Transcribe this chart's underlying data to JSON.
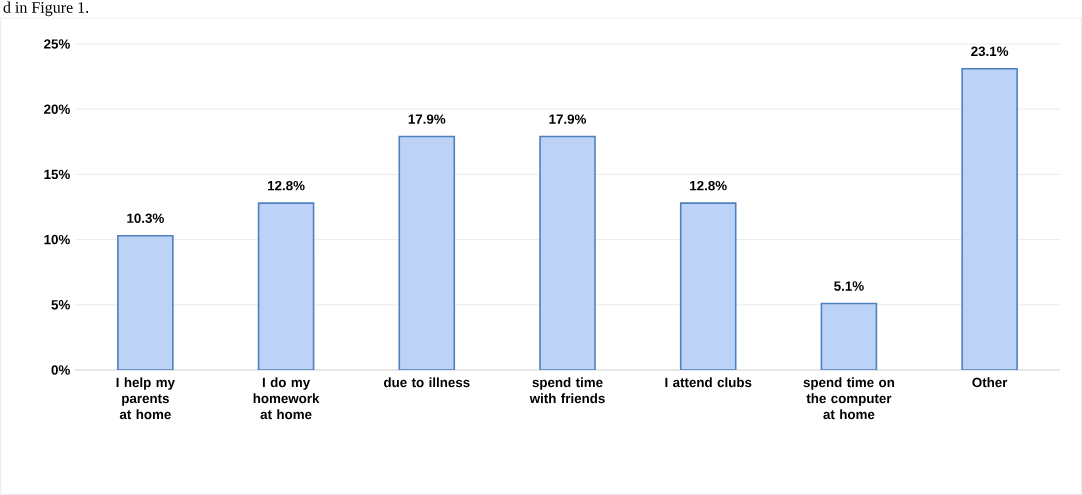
{
  "chart_data": {
    "type": "bar",
    "categories": [
      "I help my parents at home",
      "I do my homework at home",
      "due to illness",
      "spend time with friends",
      "I attend clubs",
      "spend time on the computer at home",
      "Other"
    ],
    "values": [
      10.3,
      12.8,
      17.9,
      17.9,
      12.8,
      5.1,
      23.1
    ],
    "value_labels": [
      "10.3%",
      "12.8%",
      "17.9%",
      "17.9%",
      "12.8%",
      "5.1%",
      "23.1%"
    ],
    "color": "#bcd3f7",
    "ylim": [
      0,
      25
    ],
    "yticks": [
      {
        "value": 0,
        "label": "0%"
      },
      {
        "value": 5,
        "label": "5%"
      },
      {
        "value": 10,
        "label": "10%"
      },
      {
        "value": 15,
        "label": "15%"
      },
      {
        "value": 20,
        "label": "20%"
      },
      {
        "value": 25,
        "label": "25%"
      }
    ],
    "grid": "y",
    "annotations": [
      "d in Figure 1."
    ]
  }
}
